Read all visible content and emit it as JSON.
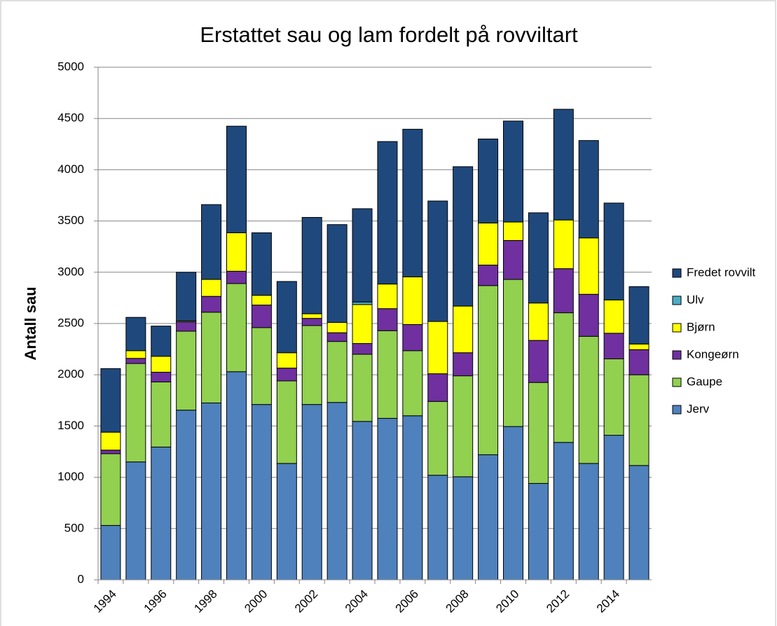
{
  "chart_data": {
    "type": "stacked_bar",
    "title": "Erstattet sau og lam fordelt på rovviltart",
    "y_label": "Antall sau",
    "categories": [
      "1994",
      null,
      "1996",
      null,
      "1998",
      null,
      "2000",
      null,
      "2002",
      null,
      "2004",
      null,
      "2006",
      null,
      "2008",
      null,
      "2010",
      null,
      "2012",
      null,
      "2014",
      null
    ],
    "series": [
      {
        "name": "Jerv",
        "color": "#4f81bd",
        "values": [
          530,
          1150,
          1295,
          1655,
          1725,
          2030,
          1710,
          1135,
          1710,
          1730,
          1545,
          1575,
          1600,
          1020,
          1005,
          1220,
          1495,
          940,
          1340,
          1135,
          1410,
          1115
        ]
      },
      {
        "name": "Gaupe",
        "color": "#92d050",
        "values": [
          700,
          960,
          635,
          770,
          885,
          860,
          750,
          805,
          770,
          595,
          655,
          855,
          635,
          720,
          985,
          1650,
          1435,
          985,
          1265,
          1240,
          745,
          885
        ]
      },
      {
        "name": "Kongeørn",
        "color": "#7030a0",
        "values": [
          35,
          50,
          95,
          90,
          155,
          120,
          220,
          125,
          70,
          85,
          105,
          215,
          255,
          270,
          225,
          200,
          380,
          410,
          430,
          410,
          250,
          245
        ]
      },
      {
        "name": "Bjørn",
        "color": "#ffff00",
        "values": [
          175,
          75,
          155,
          10,
          165,
          375,
          95,
          150,
          45,
          100,
          380,
          240,
          465,
          510,
          455,
          410,
          180,
          365,
          475,
          550,
          325,
          55
        ]
      },
      {
        "name": "Ulv",
        "color": "#4bacc6",
        "values": [
          0,
          0,
          0,
          0,
          0,
          0,
          0,
          0,
          0,
          0,
          25,
          0,
          0,
          0,
          0,
          0,
          0,
          0,
          0,
          0,
          0,
          0
        ]
      },
      {
        "name": "Fredet rovvilt",
        "color": "#1f497d",
        "values": [
          620,
          325,
          295,
          475,
          730,
          1040,
          610,
          695,
          940,
          955,
          910,
          1390,
          1440,
          1175,
          1360,
          820,
          985,
          880,
          1080,
          950,
          945,
          560
        ]
      }
    ],
    "ylim": [
      0,
      5000
    ],
    "yticks": [
      0,
      500,
      1000,
      1500,
      2000,
      2500,
      3000,
      3500,
      4000,
      4500,
      5000
    ],
    "grid": true,
    "legend": "right"
  }
}
